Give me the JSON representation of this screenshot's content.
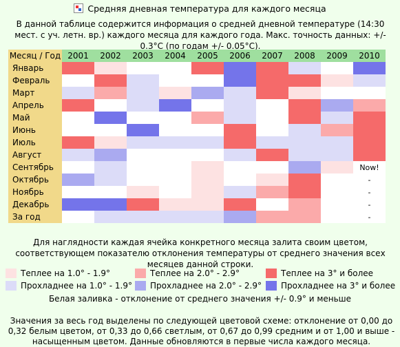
{
  "window": {
    "title": "Средняя дневная температура для каждого месяца",
    "icon": "table-icon"
  },
  "intro_text": "В данной таблице содержится информация о средней дневной температуре (14:30 мест. с уч. летн. вр.) каждого месяца для каждого года. Макс. точность данных: +/- 0.3°C (по годам +/- 0.05°C).",
  "palette": {
    "0": "#ffffff",
    "1": "#fde2e2",
    "2": "#fbaaaa",
    "3": "#f56a6a",
    "-1": "#dcdcf8",
    "-2": "#aaaaf0",
    "-3": "#7474ea"
  },
  "chart_data": {
    "type": "heatmap",
    "corner_label": "Месяц / Год",
    "years": [
      "2001",
      "2002",
      "2003",
      "2004",
      "2005",
      "2006",
      "2007",
      "2008",
      "2009",
      "2010"
    ],
    "rows": [
      {
        "label": "Январь",
        "values": [
          3,
          1,
          0,
          0,
          3,
          -3,
          3,
          -1,
          0,
          -3
        ],
        "texts": [
          "",
          "",
          "",
          "",
          "",
          "",
          "",
          "",
          "",
          ""
        ]
      },
      {
        "label": "Февраль",
        "values": [
          0,
          3,
          -1,
          0,
          0,
          -3,
          3,
          3,
          1,
          -1
        ],
        "texts": [
          "",
          "",
          "",
          "",
          "",
          "",
          "",
          "",
          "",
          ""
        ]
      },
      {
        "label": "Март",
        "values": [
          -1,
          2,
          -1,
          1,
          -2,
          -1,
          3,
          1,
          0,
          0
        ],
        "texts": [
          "",
          "",
          "",
          "",
          "",
          "",
          "",
          "",
          "",
          ""
        ]
      },
      {
        "label": "Апрель",
        "values": [
          3,
          0,
          -1,
          -3,
          0,
          -1,
          0,
          3,
          -2,
          2
        ],
        "texts": [
          "",
          "",
          "",
          "",
          "",
          "",
          "",
          "",
          "",
          ""
        ]
      },
      {
        "label": "Май",
        "values": [
          0,
          -3,
          0,
          0,
          2,
          -1,
          0,
          3,
          -1,
          3
        ],
        "texts": [
          "",
          "",
          "",
          "",
          "",
          "",
          "",
          "",
          "",
          ""
        ]
      },
      {
        "label": "Июнь",
        "values": [
          0,
          0,
          -3,
          0,
          0,
          3,
          0,
          -1,
          2,
          3
        ],
        "texts": [
          "",
          "",
          "",
          "",
          "",
          "",
          "",
          "",
          "",
          ""
        ]
      },
      {
        "label": "Июль",
        "values": [
          3,
          1,
          -1,
          -1,
          -1,
          3,
          -1,
          -1,
          -1,
          3
        ],
        "texts": [
          "",
          "",
          "",
          "",
          "",
          "",
          "",
          "",
          "",
          ""
        ]
      },
      {
        "label": "Август",
        "values": [
          -1,
          -2,
          0,
          0,
          0,
          -1,
          3,
          -1,
          -1,
          3
        ],
        "texts": [
          "",
          "",
          "",
          "",
          "",
          "",
          "",
          "",
          "",
          ""
        ]
      },
      {
        "label": "Сентябрь",
        "values": [
          0,
          -1,
          0,
          0,
          1,
          0,
          0,
          -2,
          1,
          0
        ],
        "texts": [
          "",
          "",
          "",
          "",
          "",
          "",
          "",
          "",
          "",
          "Now!"
        ]
      },
      {
        "label": "Октябрь",
        "values": [
          -2,
          -1,
          0,
          0,
          1,
          0,
          1,
          3,
          0,
          0
        ],
        "texts": [
          "",
          "",
          "",
          "",
          "",
          "",
          "",
          "",
          "",
          "-"
        ]
      },
      {
        "label": "Ноябрь",
        "values": [
          0,
          0,
          1,
          0,
          1,
          -1,
          2,
          3,
          0,
          0
        ],
        "texts": [
          "",
          "",
          "",
          "",
          "",
          "",
          "",
          "",
          "",
          "-"
        ]
      },
      {
        "label": "Декабрь",
        "values": [
          -3,
          -3,
          3,
          1,
          1,
          3,
          0,
          2,
          0,
          0
        ],
        "texts": [
          "",
          "",
          "",
          "",
          "",
          "",
          "",
          "",
          "",
          "-"
        ]
      },
      {
        "label": "За год",
        "values": [
          0,
          -1,
          -1,
          -1,
          -1,
          -2,
          2,
          2,
          0,
          0
        ],
        "texts": [
          "",
          "",
          "",
          "",
          "",
          "",
          "",
          "",
          "",
          "-"
        ]
      }
    ]
  },
  "mid_text": "Для наглядности каждая ячейка конкретного месяца залита своим цветом, соответствующем показателю отклонения температуры от среднего значения всех месяцев данной строки.",
  "legend": [
    {
      "level": "1",
      "label": "Теплее на 1.0° - 1.9°"
    },
    {
      "level": "2",
      "label": "Теплее на 2.0° - 2.9°"
    },
    {
      "level": "3",
      "label": "Теплее на 3° и более"
    },
    {
      "level": "-1",
      "label": "Прохладнее на 1.0° - 1.9°"
    },
    {
      "level": "-2",
      "label": "Прохладнее на 2.0° - 2.9°"
    },
    {
      "level": "-3",
      "label": "Прохладнее на 3° и более"
    }
  ],
  "legend_note": "Белая заливка - отклонение от среднего значения +/- 0.9° и меньше",
  "bottom_text": "Значения за весь год выделены по следующей цветовой схеме: отклонение от 0,00 до 0,32 белым цветом, от 0,33 до 0,66 светлым, от 0,67 до 0,99 средним и от 1,00 и выше - насыщенным цветом. Данные обновляются в первые числа каждого месяца."
}
